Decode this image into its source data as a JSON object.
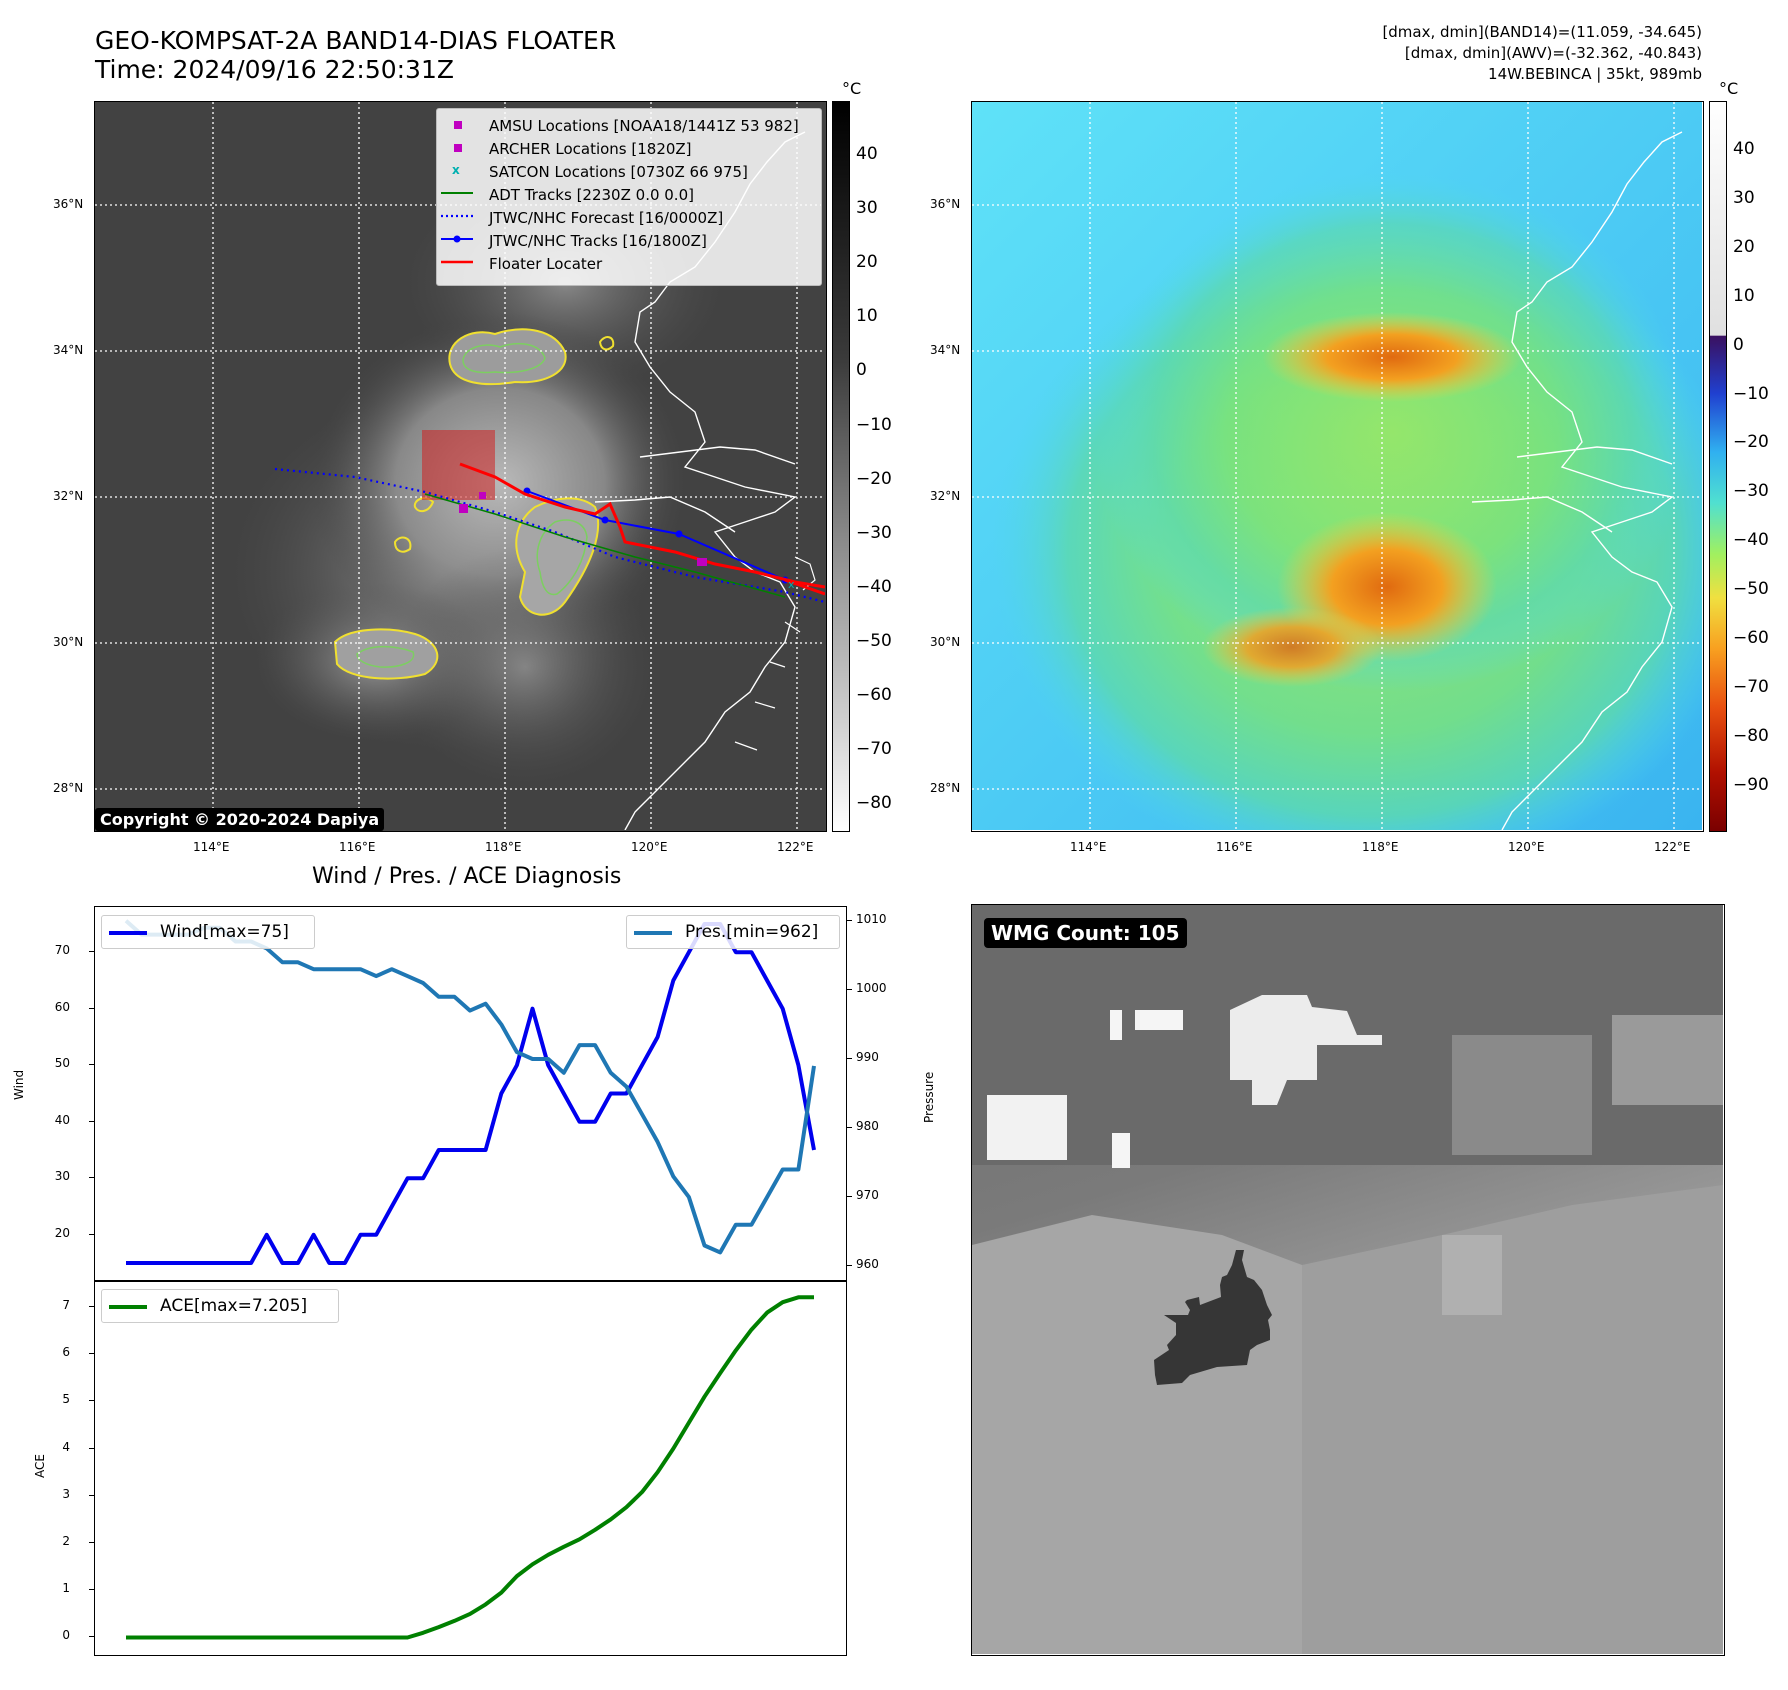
{
  "header": {
    "title_line1": "GEO-KOMPSAT-2A BAND14-DIAS FLOATER",
    "title_line2": "Time: 2024/09/16 22:50:31Z",
    "info_line1": "[dmax, dmin](BAND14)=(11.059, -34.645)",
    "info_line2": "[dmax, dmin](AWV)=(-32.362, -40.843)",
    "info_line3": "14W.BEBINCA | 35kt, 989mb"
  },
  "map": {
    "lat_labels": [
      "36°N",
      "34°N",
      "32°N",
      "30°N",
      "28°N"
    ],
    "lon_labels": [
      "114°E",
      "116°E",
      "118°E",
      "120°E",
      "122°E"
    ],
    "copyright": "Copyright © 2020-2024 Dapiya",
    "legend": [
      {
        "label": "AMSU Locations [NOAA18/1441Z 53 982]",
        "color": "#c000c0",
        "marker": "square"
      },
      {
        "label": "ARCHER Locations [1820Z]",
        "color": "#c000c0",
        "marker": "square"
      },
      {
        "label": "SATCON Locations [0730Z 66 975]",
        "color": "#00b0b0",
        "marker": "x"
      },
      {
        "label": "ADT Tracks [2230Z 0.0 0.0]",
        "color": "#008000",
        "marker": "line"
      },
      {
        "label": "JTWC/NHC Forecast [16/0000Z]",
        "color": "#0000ff",
        "marker": "dotted"
      },
      {
        "label": "JTWC/NHC Tracks [16/1800Z]",
        "color": "#0000ff",
        "marker": "line-dot"
      },
      {
        "label": "Floater Locater",
        "color": "#ff0000",
        "marker": "line"
      }
    ]
  },
  "colorbar_band14": {
    "unit": "°C",
    "ticks": [
      "40",
      "30",
      "20",
      "10",
      "0",
      "−10",
      "−20",
      "−30",
      "−40",
      "−50",
      "−60",
      "−70",
      "−80"
    ]
  },
  "colorbar_awv": {
    "unit": "°C",
    "ticks": [
      "40",
      "30",
      "20",
      "10",
      "0",
      "−10",
      "−20",
      "−30",
      "−40",
      "−50",
      "−60",
      "−70",
      "−80",
      "−90"
    ]
  },
  "diagnosis": {
    "title": "Wind / Pres. / ACE Diagnosis"
  },
  "wmg": {
    "label": "WMG Count: 105"
  },
  "chart_data": [
    {
      "type": "line",
      "title": "Wind / Pres. / ACE Diagnosis",
      "ylabel": "Wind",
      "ylabel_right": "Pressure",
      "ylim": [
        12,
        78
      ],
      "ylim_right": [
        958,
        1012
      ],
      "yticks": [
        20,
        30,
        40,
        50,
        60,
        70
      ],
      "yticks_right": [
        960,
        970,
        980,
        990,
        1000,
        1010
      ],
      "legend_left": "Wind[max=75]",
      "legend_right": "Pres.[min=962]",
      "series": [
        {
          "name": "Wind",
          "color": "#0000ee",
          "axis": "left",
          "values": [
            15,
            15,
            15,
            15,
            15,
            15,
            15,
            15,
            15,
            20,
            15,
            15,
            20,
            15,
            15,
            20,
            20,
            25,
            30,
            30,
            35,
            35,
            35,
            35,
            45,
            50,
            60,
            50,
            45,
            40,
            40,
            45,
            45,
            50,
            55,
            65,
            70,
            75,
            75,
            70,
            70,
            65,
            60,
            50,
            35
          ]
        },
        {
          "name": "Pres.",
          "color": "#1f77b4",
          "axis": "right",
          "values": [
            1010,
            1008,
            1008,
            1008,
            1008,
            1009,
            1009,
            1007,
            1007,
            1006,
            1004,
            1004,
            1003,
            1003,
            1003,
            1003,
            1002,
            1003,
            1002,
            1001,
            999,
            999,
            997,
            998,
            995,
            991,
            990,
            990,
            988,
            992,
            992,
            988,
            986,
            982,
            978,
            973,
            970,
            963,
            962,
            966,
            966,
            970,
            974,
            974,
            989
          ]
        }
      ]
    },
    {
      "type": "line",
      "ylabel": "ACE",
      "ylim": [
        -0.35,
        7.55
      ],
      "yticks": [
        0,
        1,
        2,
        3,
        4,
        5,
        6,
        7
      ],
      "legend": "ACE[max=7.205]",
      "series": [
        {
          "name": "ACE",
          "color": "#008000",
          "values": [
            0,
            0,
            0,
            0,
            0,
            0,
            0,
            0,
            0,
            0,
            0,
            0,
            0,
            0,
            0,
            0,
            0,
            0,
            0,
            0.1,
            0.22,
            0.35,
            0.5,
            0.7,
            0.95,
            1.3,
            1.55,
            1.75,
            1.92,
            2.08,
            2.28,
            2.5,
            2.76,
            3.08,
            3.5,
            4.0,
            4.55,
            5.1,
            5.6,
            6.08,
            6.52,
            6.88,
            7.1,
            7.205,
            7.205
          ]
        }
      ]
    }
  ]
}
